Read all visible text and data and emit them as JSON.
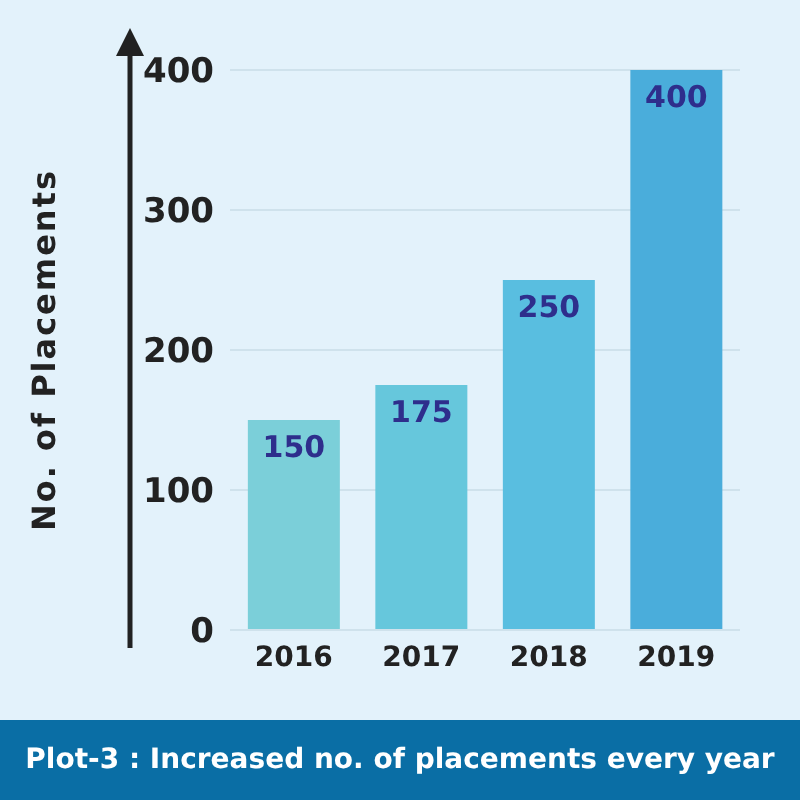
{
  "chart_data": {
    "type": "bar",
    "title": "Plot-3 : Increased no. of placements every year",
    "ylabel": "No. of Placements",
    "categories": [
      "2016",
      "2017",
      "2018",
      "2019"
    ],
    "values": [
      150,
      175,
      250,
      400
    ],
    "colors": [
      "#7bcfd9",
      "#66c7dc",
      "#59bee0",
      "#4aaddb"
    ],
    "ylim": [
      0,
      400
    ],
    "yticks": [
      0,
      100,
      200,
      300,
      400
    ],
    "grid": "y",
    "data_labels": true
  }
}
